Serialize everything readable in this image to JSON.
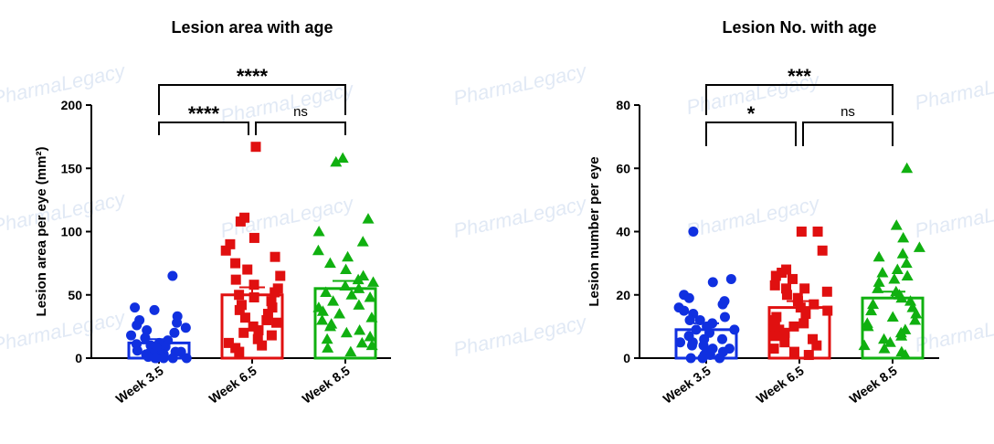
{
  "watermark": "PharmaLegacy",
  "colors": {
    "week35": "#1030e0",
    "week65": "#e01010",
    "week85": "#10b010",
    "axis": "#000000"
  },
  "chart_data": [
    {
      "type": "bar",
      "title": "Lesion area with age",
      "ylabel": "Lesion area per eye (mm²)",
      "xlabel": "",
      "ylim": [
        0,
        200
      ],
      "yticks": [
        "0",
        "50",
        "100",
        "150",
        "200"
      ],
      "categories": [
        "Week 3.5",
        "Week 6.5",
        "Week 8.5"
      ],
      "values": [
        12,
        50,
        55
      ],
      "errors": [
        3,
        6,
        6
      ],
      "markers": [
        "circle",
        "square",
        "triangle"
      ],
      "points": [
        [
          65,
          40,
          38,
          33,
          30,
          28,
          26,
          24,
          22,
          20,
          18,
          16,
          14,
          12,
          11,
          10,
          9,
          8,
          7,
          6,
          5,
          5,
          4,
          4,
          3,
          3,
          2,
          2,
          1,
          1,
          0,
          0,
          0,
          0,
          0
        ],
        [
          167,
          111,
          108,
          95,
          90,
          85,
          80,
          75,
          70,
          65,
          62,
          58,
          55,
          52,
          50,
          48,
          45,
          42,
          40,
          38,
          35,
          32,
          30,
          28,
          25,
          22,
          20,
          18,
          15,
          12,
          10,
          8,
          5
        ],
        [
          158,
          155,
          110,
          100,
          92,
          85,
          80,
          75,
          70,
          65,
          62,
          60,
          57,
          55,
          52,
          50,
          48,
          45,
          42,
          40,
          37,
          35,
          32,
          30,
          27,
          25,
          22,
          20,
          17,
          15,
          12,
          10,
          8,
          5
        ]
      ],
      "comparisons": [
        {
          "from": 0,
          "to": 2,
          "label": "****",
          "level": 2
        },
        {
          "from": 0,
          "to": 1,
          "label": "****",
          "level": 1
        },
        {
          "from": 1,
          "to": 2,
          "label": "ns",
          "level": 1
        }
      ]
    },
    {
      "type": "bar",
      "title": "Lesion No. with age",
      "ylabel": "Lesion number per eye",
      "xlabel": "",
      "ylim": [
        0,
        80
      ],
      "yticks": [
        "0",
        "20",
        "40",
        "60",
        "80"
      ],
      "categories": [
        "Week 3.5",
        "Week 6.5",
        "Week 8.5"
      ],
      "values": [
        9,
        16,
        19
      ],
      "errors": [
        2,
        2,
        2
      ],
      "markers": [
        "circle",
        "square",
        "triangle"
      ],
      "points": [
        [
          40,
          25,
          24,
          20,
          19,
          18,
          17,
          16,
          15,
          14,
          13,
          12,
          12,
          11,
          10,
          9,
          9,
          8,
          7,
          6,
          6,
          5,
          5,
          4,
          4,
          3,
          3,
          2,
          2,
          1,
          1,
          0,
          0,
          0
        ],
        [
          40,
          40,
          34,
          28,
          27,
          26,
          25,
          23,
          22,
          22,
          21,
          20,
          19,
          18,
          17,
          16,
          15,
          14,
          13,
          12,
          11,
          10,
          10,
          9,
          8,
          7,
          6,
          5,
          4,
          3,
          2,
          1
        ],
        [
          60,
          42,
          38,
          35,
          33,
          32,
          30,
          28,
          27,
          26,
          25,
          24,
          22,
          21,
          20,
          19,
          18,
          17,
          16,
          15,
          14,
          13,
          12,
          11,
          10,
          9,
          8,
          7,
          6,
          5,
          4,
          3,
          2,
          1
        ]
      ],
      "comparisons": [
        {
          "from": 0,
          "to": 2,
          "label": "***",
          "level": 2
        },
        {
          "from": 0,
          "to": 1,
          "label": "*",
          "level": 1
        },
        {
          "from": 1,
          "to": 2,
          "label": "ns",
          "level": 1
        }
      ]
    }
  ]
}
